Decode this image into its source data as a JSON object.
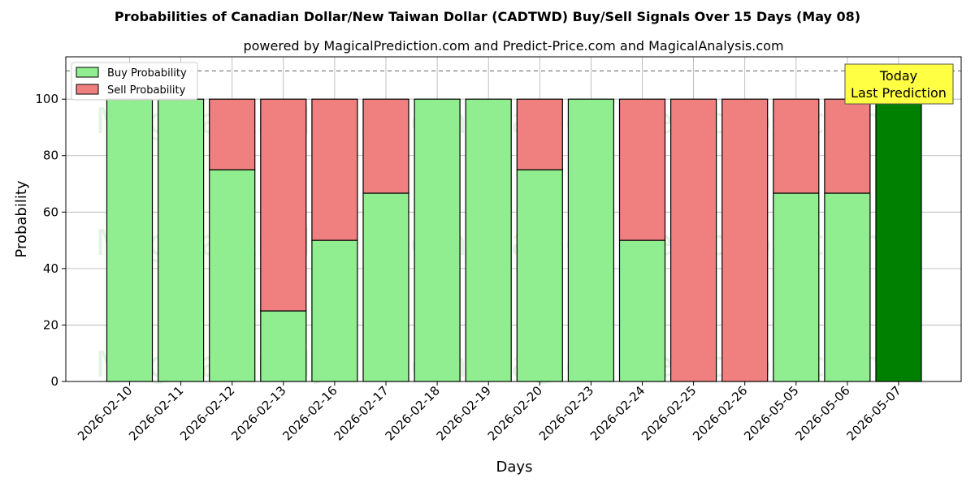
{
  "chart_data": {
    "type": "bar",
    "stacked": true,
    "title": "Probabilities of Canadian Dollar/New Taiwan Dollar (CADTWD) Buy/Sell Signals Over 15 Days (May 08)",
    "subtitle": "powered by MagicalPrediction.com and Predict-Price.com and MagicalAnalysis.com",
    "xlabel": "Days",
    "ylabel": "Probability",
    "ylim": [
      0,
      115
    ],
    "yticks": [
      0,
      20,
      40,
      60,
      80,
      100
    ],
    "reference_line": 110,
    "grid": true,
    "legend_position": "top-left",
    "categories": [
      "2026-02-10",
      "2026-02-11",
      "2026-02-12",
      "2026-02-13",
      "2026-02-16",
      "2026-02-17",
      "2026-02-18",
      "2026-02-19",
      "2026-02-20",
      "2026-02-23",
      "2026-02-24",
      "2026-02-25",
      "2026-02-26",
      "2026-05-05",
      "2026-05-06",
      "2026-05-07"
    ],
    "series": [
      {
        "name": "Buy Probability",
        "color": "#90ee90",
        "values": [
          100,
          100,
          75,
          25,
          50,
          66.7,
          100,
          100,
          75,
          100,
          50,
          0,
          0,
          66.7,
          66.7,
          100
        ]
      },
      {
        "name": "Sell Probability",
        "color": "#f08080",
        "values": [
          0,
          0,
          25,
          75,
          50,
          33.3,
          0,
          0,
          25,
          0,
          50,
          100,
          100,
          33.3,
          33.3,
          0
        ]
      }
    ],
    "highlight": {
      "index": 15,
      "color": "#008000"
    },
    "annotation": {
      "line1": "Today",
      "line2": "Last Prediction",
      "background": "#ffff44"
    },
    "watermarks": [
      "MagicalAnalysis.com",
      "MagicalPrediction.com"
    ]
  }
}
